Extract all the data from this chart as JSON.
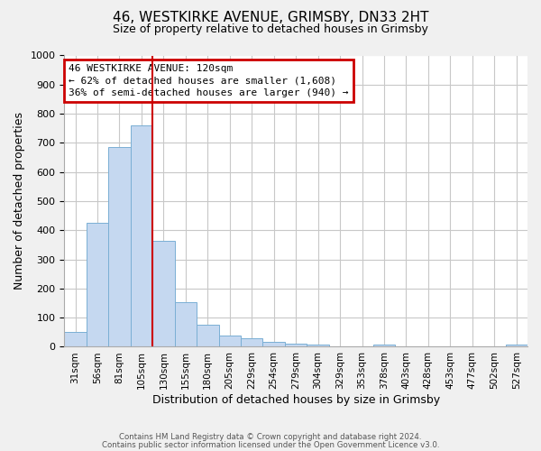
{
  "title_line1": "46, WESTKIRKE AVENUE, GRIMSBY, DN33 2HT",
  "title_line2": "Size of property relative to detached houses in Grimsby",
  "xlabel": "Distribution of detached houses by size in Grimsby",
  "ylabel": "Number of detached properties",
  "bar_labels": [
    "31sqm",
    "56sqm",
    "81sqm",
    "105sqm",
    "130sqm",
    "155sqm",
    "180sqm",
    "205sqm",
    "229sqm",
    "254sqm",
    "279sqm",
    "304sqm",
    "329sqm",
    "353sqm",
    "378sqm",
    "403sqm",
    "428sqm",
    "453sqm",
    "477sqm",
    "502sqm",
    "527sqm"
  ],
  "bar_values": [
    52,
    425,
    685,
    760,
    365,
    152,
    75,
    40,
    30,
    18,
    12,
    9,
    0,
    0,
    8,
    0,
    0,
    0,
    0,
    0,
    8
  ],
  "bar_color": "#c5d8f0",
  "bar_edge_color": "#7aafd4",
  "highlight_color": "#cc0000",
  "annotation_title": "46 WESTKIRKE AVENUE: 120sqm",
  "annotation_line1": "← 62% of detached houses are smaller (1,608)",
  "annotation_line2": "36% of semi-detached houses are larger (940) →",
  "annotation_box_color": "#cc0000",
  "ylim": [
    0,
    1000
  ],
  "yticks": [
    0,
    100,
    200,
    300,
    400,
    500,
    600,
    700,
    800,
    900,
    1000
  ],
  "footer_line1": "Contains HM Land Registry data © Crown copyright and database right 2024.",
  "footer_line2": "Contains public sector information licensed under the Open Government Licence v3.0.",
  "bg_color": "#f0f0f0",
  "plot_bg_color": "#ffffff",
  "grid_color": "#c8c8c8"
}
